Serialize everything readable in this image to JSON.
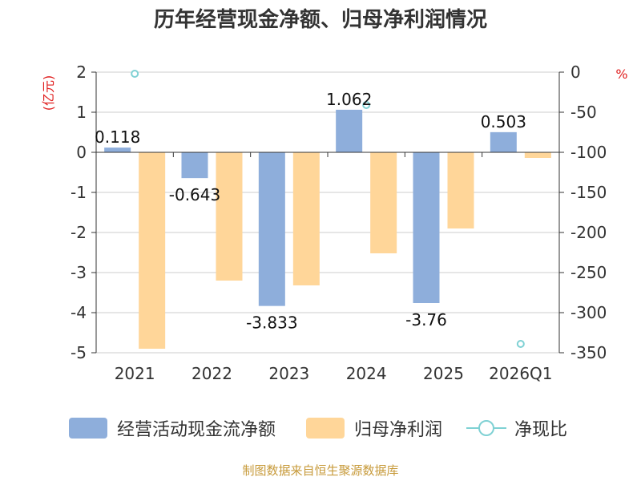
{
  "title": "历年经营现金净额、归母净利润情况",
  "source": "制图数据来自恒生聚源数据库",
  "chart_data": {
    "type": "bar",
    "categories": [
      "2021",
      "2022",
      "2023",
      "2024",
      "2025",
      "2026Q1"
    ],
    "left_axis": {
      "unit": "(亿元)",
      "ylim": [
        -5,
        2
      ],
      "ticks": [
        2,
        1,
        0,
        -1,
        -2,
        -3,
        -4,
        -5
      ]
    },
    "right_axis": {
      "unit": "%",
      "ylim": [
        -350,
        0
      ],
      "ticks": [
        0,
        -50,
        -100,
        -150,
        -200,
        -250,
        -300,
        -350
      ]
    },
    "series": [
      {
        "name": "经营活动现金流净额",
        "kind": "bar",
        "axis": "left",
        "color": "#8eaedb",
        "values": [
          0.118,
          -0.643,
          -3.833,
          1.062,
          -3.76,
          0.503
        ],
        "labels": [
          "0.118",
          "-0.643",
          "-3.833",
          "1.062",
          "-3.76",
          "0.503"
        ]
      },
      {
        "name": "归母净利润",
        "kind": "bar",
        "axis": "left",
        "color": "#ffd699",
        "values": [
          -4.9,
          -3.2,
          -3.32,
          -2.52,
          -1.9,
          -0.14
        ]
      },
      {
        "name": "净现比",
        "kind": "point",
        "axis": "right",
        "color": "#7fd1d4",
        "values": [
          -2,
          null,
          null,
          -41,
          null,
          -339
        ]
      }
    ],
    "grid": true,
    "legend": "bottom"
  }
}
